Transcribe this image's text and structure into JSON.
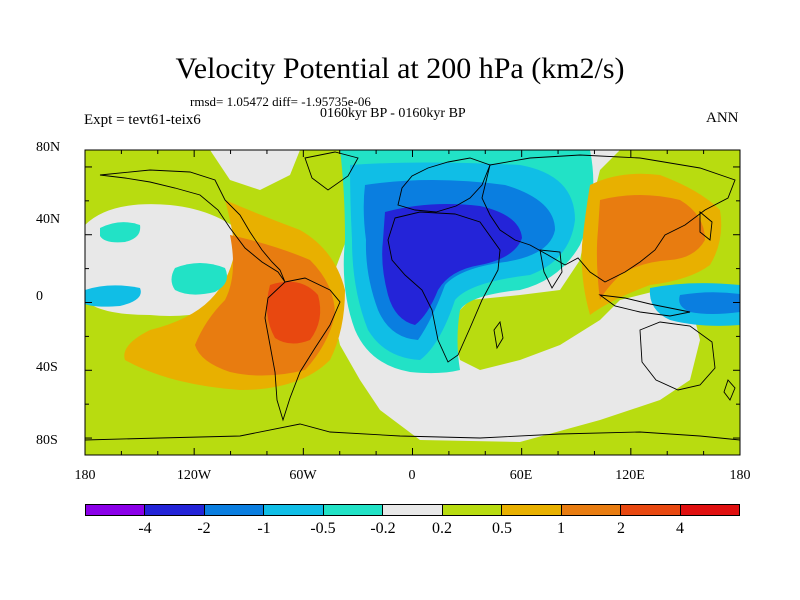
{
  "figure": {
    "title": "Velocity Potential at 200 hPa (km2/s)",
    "rmsd_line": "rmsd= 1.05472 diff= -1.95735e-06",
    "period": "0160kyr BP - 0160kyr BP",
    "expt_label": "Expt = tevt61-teix6",
    "season": "ANN"
  },
  "axes": {
    "lat_ticks": [
      "80N",
      "40N",
      "0",
      "40S",
      "80S"
    ],
    "lon_ticks": [
      "180",
      "120W",
      "60W",
      "0",
      "60E",
      "120E",
      "180"
    ]
  },
  "colorbar": {
    "colors": [
      "#8b00e8",
      "#2424d8",
      "#0a7ee0",
      "#10bee6",
      "#22e2c6",
      "#e8e8e8",
      "#b8dc10",
      "#e8b000",
      "#e87c10",
      "#e84810",
      "#e01010"
    ],
    "labels": [
      "-4",
      "-2",
      "-1",
      "-0.5",
      "-0.2",
      "0.2",
      "0.5",
      "1",
      "2",
      "4"
    ]
  },
  "chart_data": {
    "type": "heatmap",
    "map_type": "filled contour map, global cylindrical equidistant projection",
    "title": "Velocity Potential at 200 hPa (km2/s)",
    "units": "km2/s",
    "xlim": [
      -180,
      180
    ],
    "ylim": [
      -90,
      90
    ],
    "levels": [
      -4,
      -2,
      -1,
      -0.5,
      -0.2,
      0.2,
      0.5,
      1,
      2,
      4
    ],
    "features": [
      {
        "name": "Atlantic/Africa minimum",
        "center_lon": 10,
        "center_lat": 10,
        "min_level": -2
      },
      {
        "name": "South America maximum",
        "center_lon": -60,
        "center_lat": -12,
        "max_level": 2
      },
      {
        "name": "East Asia / West Pacific maximum",
        "center_lon": 130,
        "center_lat": 25,
        "max_level": 1
      },
      {
        "name": "Central Pacific negative patch",
        "center_lon": -145,
        "center_lat": 5,
        "min_level": -0.5
      },
      {
        "name": "Equatorial Pacific negative patch",
        "center_lon": 168,
        "center_lat": 0,
        "min_level": -1
      }
    ]
  }
}
